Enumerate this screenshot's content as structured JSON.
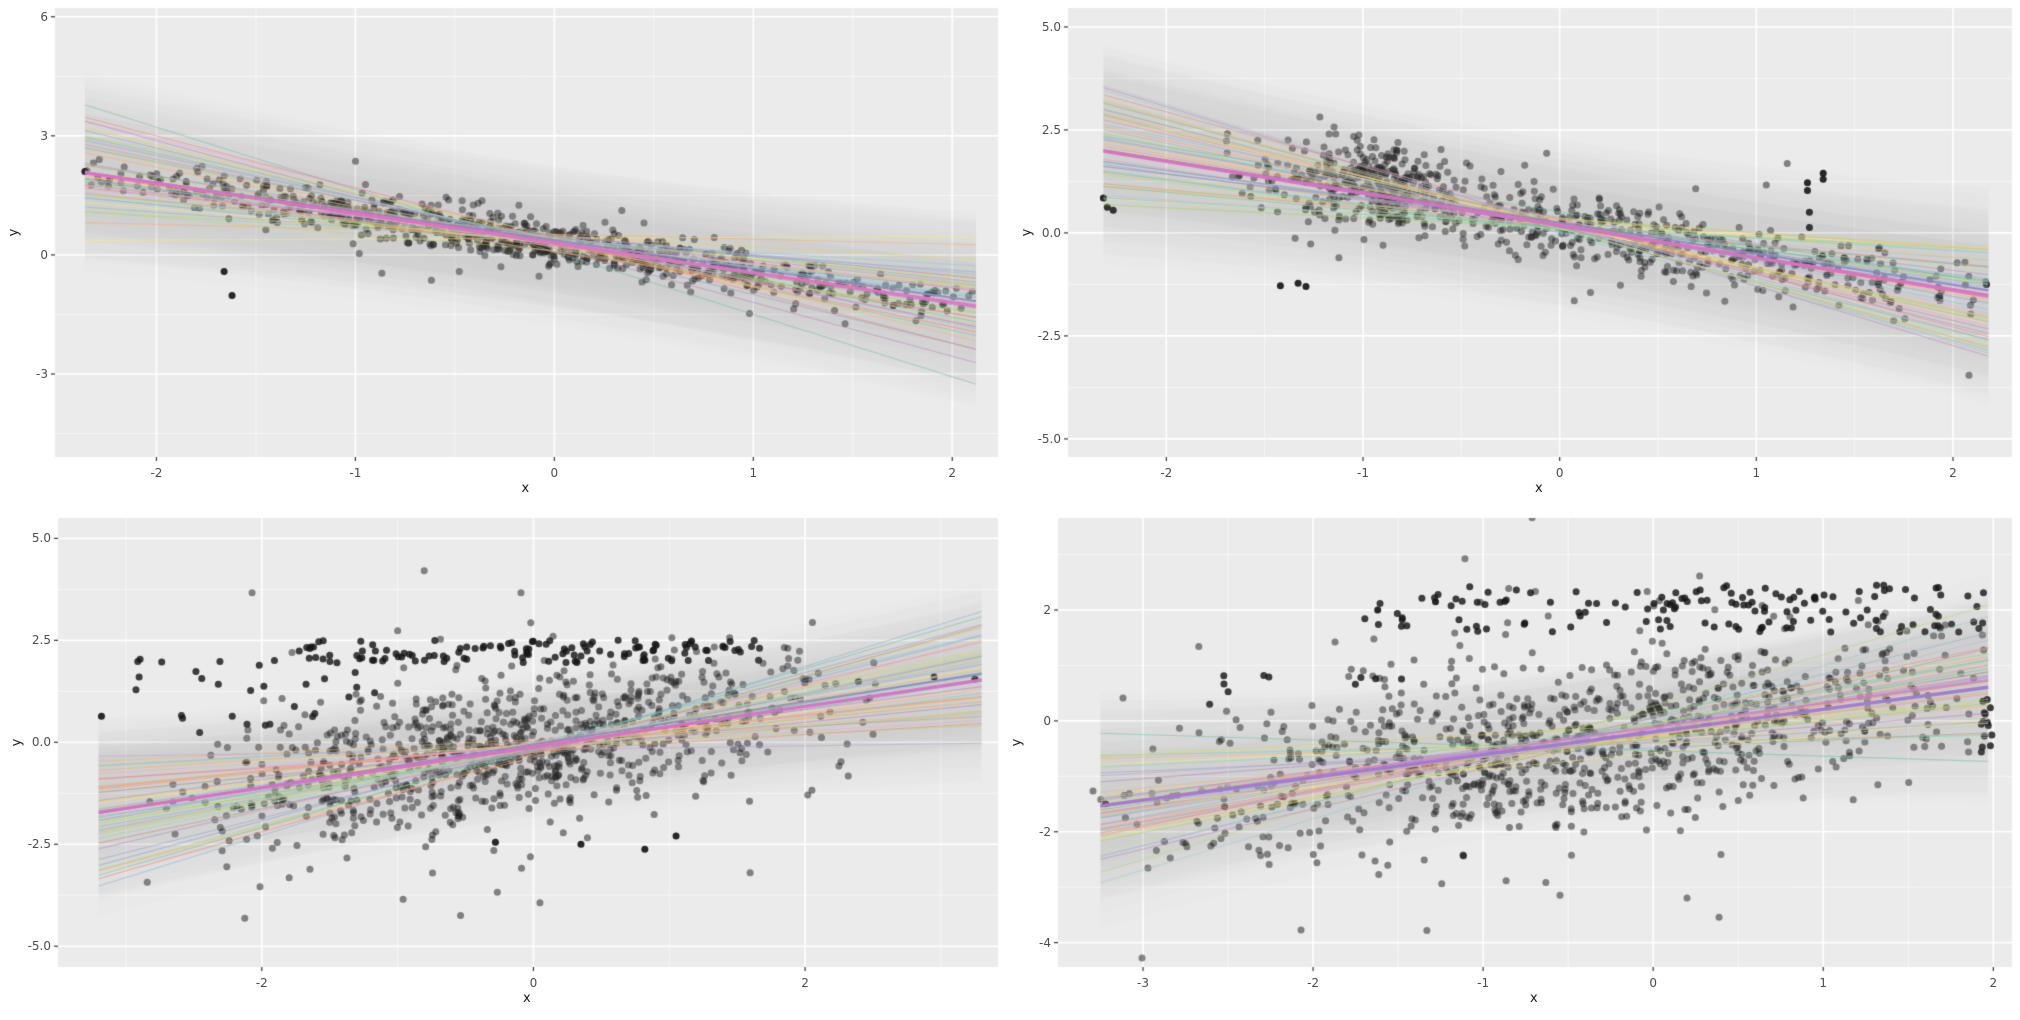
{
  "figure": {
    "background": "#ffffff",
    "panel_background": "#ebebeb",
    "grid_major_color": "rgba(255,255,255,1)",
    "grid_minor_color": "rgba(255,255,255,0.6)",
    "tick_mark_color": "#333333",
    "tick_label_color": "#4d4d4d",
    "axis_title_color": "#1a1a1a",
    "point_color": "#161616",
    "point_alpha": 0.5,
    "dark_point_alpha": 0.82,
    "outlier_alpha": 0.92,
    "point_radius": 3.5,
    "ribbon_color": "rgba(120,120,120,1)",
    "ribbon_alpha": 0.016,
    "n_ribbons": 14,
    "n_spaghetti_lines": 55,
    "spaghetti_alpha": 0.5,
    "line_palette": [
      "#66c2a5",
      "#8dd3c7",
      "#a6d854",
      "#b3de69",
      "#fdb462",
      "#fdae61",
      "#e6d854",
      "#ffed6f",
      "#e78ac3",
      "#f4a6d7",
      "#80b1d3",
      "#8da0cb",
      "#bc80bd",
      "#b39ddb",
      "#fb8072",
      "#bebada",
      "#6fcfcf",
      "#c7e59f"
    ]
  },
  "chart_data": [
    {
      "type": "scatter",
      "position": "top-left",
      "xlabel": "x",
      "ylabel": "y",
      "xlim": [
        -2.51,
        2.23
      ],
      "ylim": [
        -5.09,
        6.22
      ],
      "x_ticks": [
        -2,
        -1,
        0,
        1,
        2
      ],
      "x_tick_labels": [
        "-2",
        "-1",
        "0",
        "1",
        "2"
      ],
      "y_ticks": [
        6,
        3,
        0,
        -3
      ],
      "y_tick_labels": [
        "6",
        "3",
        "0",
        "-3"
      ],
      "trend": {
        "slope": -0.75,
        "intercept": 0.3
      },
      "fit_x_range": [
        -2.36,
        2.12
      ],
      "points": {
        "n": 880,
        "x_mean": -0.1,
        "x_sd": 1.12,
        "x_range": [
          -2.36,
          2.12
        ],
        "noise_sd": 0.26
      },
      "clusters": [],
      "outliers": [
        [
          -1.66,
          -0.42
        ],
        [
          -1.62,
          -1.02
        ],
        [
          -2.36,
          2.1
        ]
      ],
      "band": {
        "half_width": 2.0,
        "flare": 0.22
      },
      "highlight_color": "#e46fc8",
      "secondary_color": "#8e7cc3",
      "seed": 101
    },
    {
      "type": "scatter",
      "position": "top-right",
      "xlabel": "x",
      "ylabel": "y",
      "xlim": [
        -2.5,
        2.3
      ],
      "ylim": [
        -5.44,
        5.46
      ],
      "x_ticks": [
        -2,
        -1,
        0,
        1,
        2
      ],
      "x_tick_labels": [
        "-2",
        "-1",
        "0",
        "1",
        "2"
      ],
      "y_ticks": [
        5,
        2.5,
        0,
        -2.5,
        -5
      ],
      "y_tick_labels": [
        "5.0",
        "2.5",
        "0.0",
        "-2.5",
        "-5.0"
      ],
      "trend": {
        "slope": -0.78,
        "intercept": 0.18
      },
      "fit_x_range": [
        -2.32,
        2.18
      ],
      "points": {
        "n": 640,
        "x_mean": 0.15,
        "x_sd": 1.1,
        "x_range": [
          -1.7,
          2.18
        ],
        "noise_sd": 0.4
      },
      "clusters": [
        {
          "n": 230,
          "x_mean": -0.95,
          "x_sd": 0.17,
          "y_offset_mean": 0.35,
          "y_offset_sd": 0.55,
          "dark": false
        }
      ],
      "outliers": [
        [
          -2.32,
          0.85
        ],
        [
          -2.3,
          0.62
        ],
        [
          -2.27,
          0.55
        ],
        [
          -1.42,
          -1.28
        ],
        [
          -1.33,
          -1.22
        ],
        [
          -1.29,
          -1.3
        ],
        [
          1.26,
          1.22
        ],
        [
          1.26,
          1.03
        ],
        [
          1.27,
          0.5
        ],
        [
          1.27,
          0.13
        ],
        [
          1.34,
          1.45
        ],
        [
          1.34,
          1.3
        ],
        [
          2.17,
          -1.25
        ]
      ],
      "band": {
        "half_width": 2.1,
        "flare": 0.25
      },
      "highlight_color": "#db6fc4",
      "secondary_color": "#8e7cc3",
      "seed": 202
    },
    {
      "type": "scatter",
      "position": "bottom-left",
      "xlabel": "x",
      "ylabel": "y",
      "xlim": [
        -3.5,
        3.42
      ],
      "ylim": [
        -5.51,
        5.5
      ],
      "x_ticks": [
        -2,
        0,
        2
      ],
      "x_tick_labels": [
        "-2",
        "0",
        "2"
      ],
      "y_ticks": [
        5,
        2.5,
        0,
        -2.5,
        -5
      ],
      "y_tick_labels": [
        "5.0",
        "2.5",
        "0.0",
        "-2.5",
        "-5.0"
      ],
      "trend": {
        "slope": 0.5,
        "intercept": -0.12
      },
      "fit_x_range": [
        -3.2,
        3.3
      ],
      "points": {
        "n": 980,
        "x_mean": -0.15,
        "x_sd": 1.15,
        "x_range": [
          -2.85,
          2.6
        ],
        "noise_sd": 0.88
      },
      "clusters": [
        {
          "n": 120,
          "x_range": [
            -1.7,
            1.7
          ],
          "y_range": [
            1.95,
            2.5
          ],
          "dark": true
        },
        {
          "n": 22,
          "x_range": [
            -2.95,
            -0.9
          ],
          "y_range": [
            1.1,
            2.35
          ],
          "dark": true
        },
        {
          "n": 10,
          "x_range": [
            -2.6,
            -1.6
          ],
          "y_range": [
            0.2,
            0.9
          ],
          "dark": true
        }
      ],
      "outliers": [
        [
          -3.18,
          0.64
        ],
        [
          0.35,
          -2.5
        ],
        [
          0.82,
          -2.62
        ],
        [
          -0.28,
          -2.45
        ],
        [
          1.05,
          -2.3
        ],
        [
          2.95,
          1.6
        ],
        [
          3.25,
          1.55
        ]
      ],
      "band": {
        "half_width": 1.8,
        "flare": 0.3
      },
      "highlight_color": "#e06cc8",
      "secondary_color": "#8e7cc3",
      "seed": 303
    },
    {
      "type": "scatter",
      "position": "bottom-right",
      "xlabel": "x",
      "ylabel": "y",
      "xlim": [
        -3.5,
        2.11
      ],
      "ylim": [
        -4.44,
        3.66
      ],
      "x_ticks": [
        -3,
        -2,
        -1,
        0,
        1,
        2
      ],
      "x_tick_labels": [
        "-3",
        "-2",
        "-1",
        "0",
        "1",
        "2"
      ],
      "y_ticks": [
        2,
        0,
        -2,
        -4
      ],
      "y_tick_labels": [
        "2",
        "0",
        "-2",
        "-4"
      ],
      "trend": {
        "slope": 0.41,
        "intercept": -0.2
      },
      "fit_x_range": [
        -3.25,
        1.97
      ],
      "points": {
        "n": 1050,
        "x_mean": -0.5,
        "x_sd": 1.2,
        "x_range": [
          -3.3,
          1.97
        ],
        "noise_sd": 0.8
      },
      "clusters": [
        {
          "n": 45,
          "x_range": [
            -1.7,
            0.0
          ],
          "y_range": [
            1.6,
            2.45
          ],
          "dark": true
        },
        {
          "n": 100,
          "x_range": [
            0.0,
            1.95
          ],
          "y_range": [
            1.6,
            2.45
          ],
          "dark": true
        },
        {
          "n": 10,
          "x_range": [
            -2.7,
            -1.3
          ],
          "y_range": [
            0.3,
            0.85
          ],
          "dark": true
        },
        {
          "n": 14,
          "x_mean": 1.95,
          "x_sd": 0.02,
          "y_range": [
            -0.6,
            0.45
          ],
          "dark": true
        }
      ],
      "outliers": [
        [
          -3.22,
          -1.5
        ],
        [
          -2.52,
          -1.55
        ],
        [
          -1.62,
          2.0
        ],
        [
          -1.28,
          2.15
        ]
      ],
      "band": {
        "half_width": 1.4,
        "flare": 0.4
      },
      "highlight_color": "#9f77d8",
      "secondary_color": "#d978c8",
      "seed": 404
    }
  ]
}
